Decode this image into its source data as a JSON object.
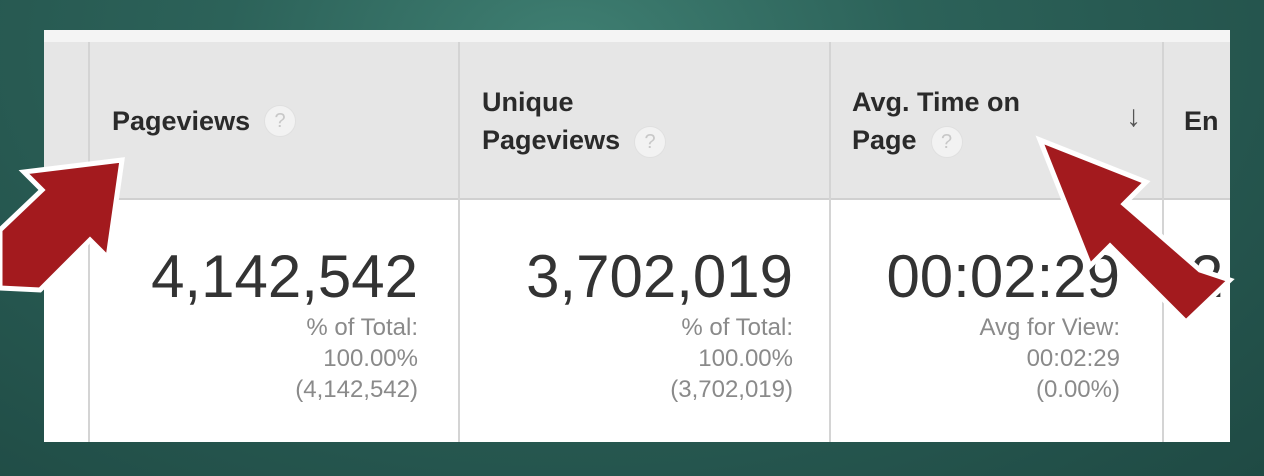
{
  "columns": [
    {
      "header_line1": "Pageviews",
      "header_line2": "",
      "value": "4,142,542",
      "sub1": "% of Total:",
      "sub2": "100.00%",
      "sub3": "(4,142,542)"
    },
    {
      "header_line1": "Unique",
      "header_line2": "Pageviews",
      "value": "3,702,019",
      "sub1": "% of Total:",
      "sub2": "100.00%",
      "sub3": "(3,702,019)"
    },
    {
      "header_line1": "Avg. Time on",
      "header_line2": "Page",
      "value": "00:02:29",
      "sub1": "Avg for View:",
      "sub2": "00:02:29",
      "sub3": "(0.00%)"
    }
  ],
  "cut_off_header": "En",
  "cut_off_value": "2",
  "help_glyph": "?",
  "sort_glyph": "↓",
  "arrow_color": "#a31a1e"
}
